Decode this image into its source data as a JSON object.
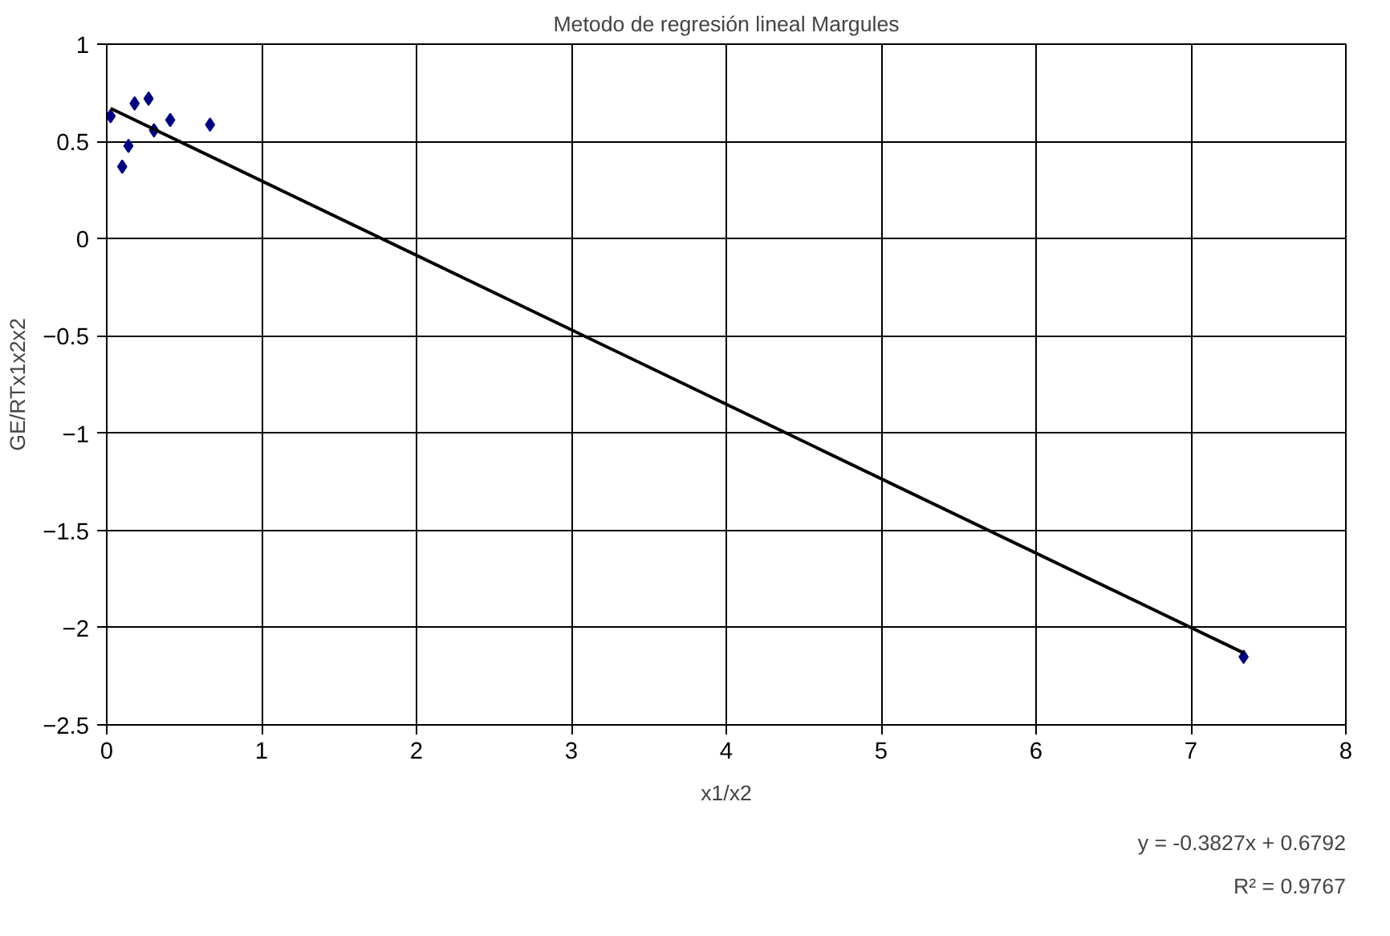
{
  "chart_data": {
    "type": "scatter",
    "title": "Metodo de regresión lineal Margules",
    "xlabel": "x1/x2",
    "ylabel": "GE/RTx1x2x2",
    "series": [
      {
        "type": "scatter",
        "color": "#000080",
        "x": [
          0.025,
          0.1,
          0.14,
          0.18,
          0.27,
          0.305,
          0.41,
          0.667,
          7.34
        ],
        "values": [
          0.63,
          0.37,
          0.477,
          0.695,
          0.72,
          0.557,
          0.61,
          0.586,
          -2.15
        ],
        "marker": "diamond"
      },
      {
        "type": "line",
        "color": "#000000",
        "x": [
          0.025,
          7.34
        ],
        "values": [
          0.67,
          -2.13
        ],
        "marker": "none"
      }
    ],
    "xlim": [
      0,
      8
    ],
    "ylim": [
      -2.5,
      1
    ],
    "xticks": [
      0,
      1,
      2,
      3,
      4,
      5,
      6,
      7,
      8
    ],
    "yticks": [
      -2.5,
      -2,
      -1.5,
      -1,
      -0.5,
      0,
      0.5,
      1
    ],
    "grid": true,
    "annotations": [
      "y = -0.3827x + 0.6792",
      "R² = 0.9767"
    ]
  }
}
